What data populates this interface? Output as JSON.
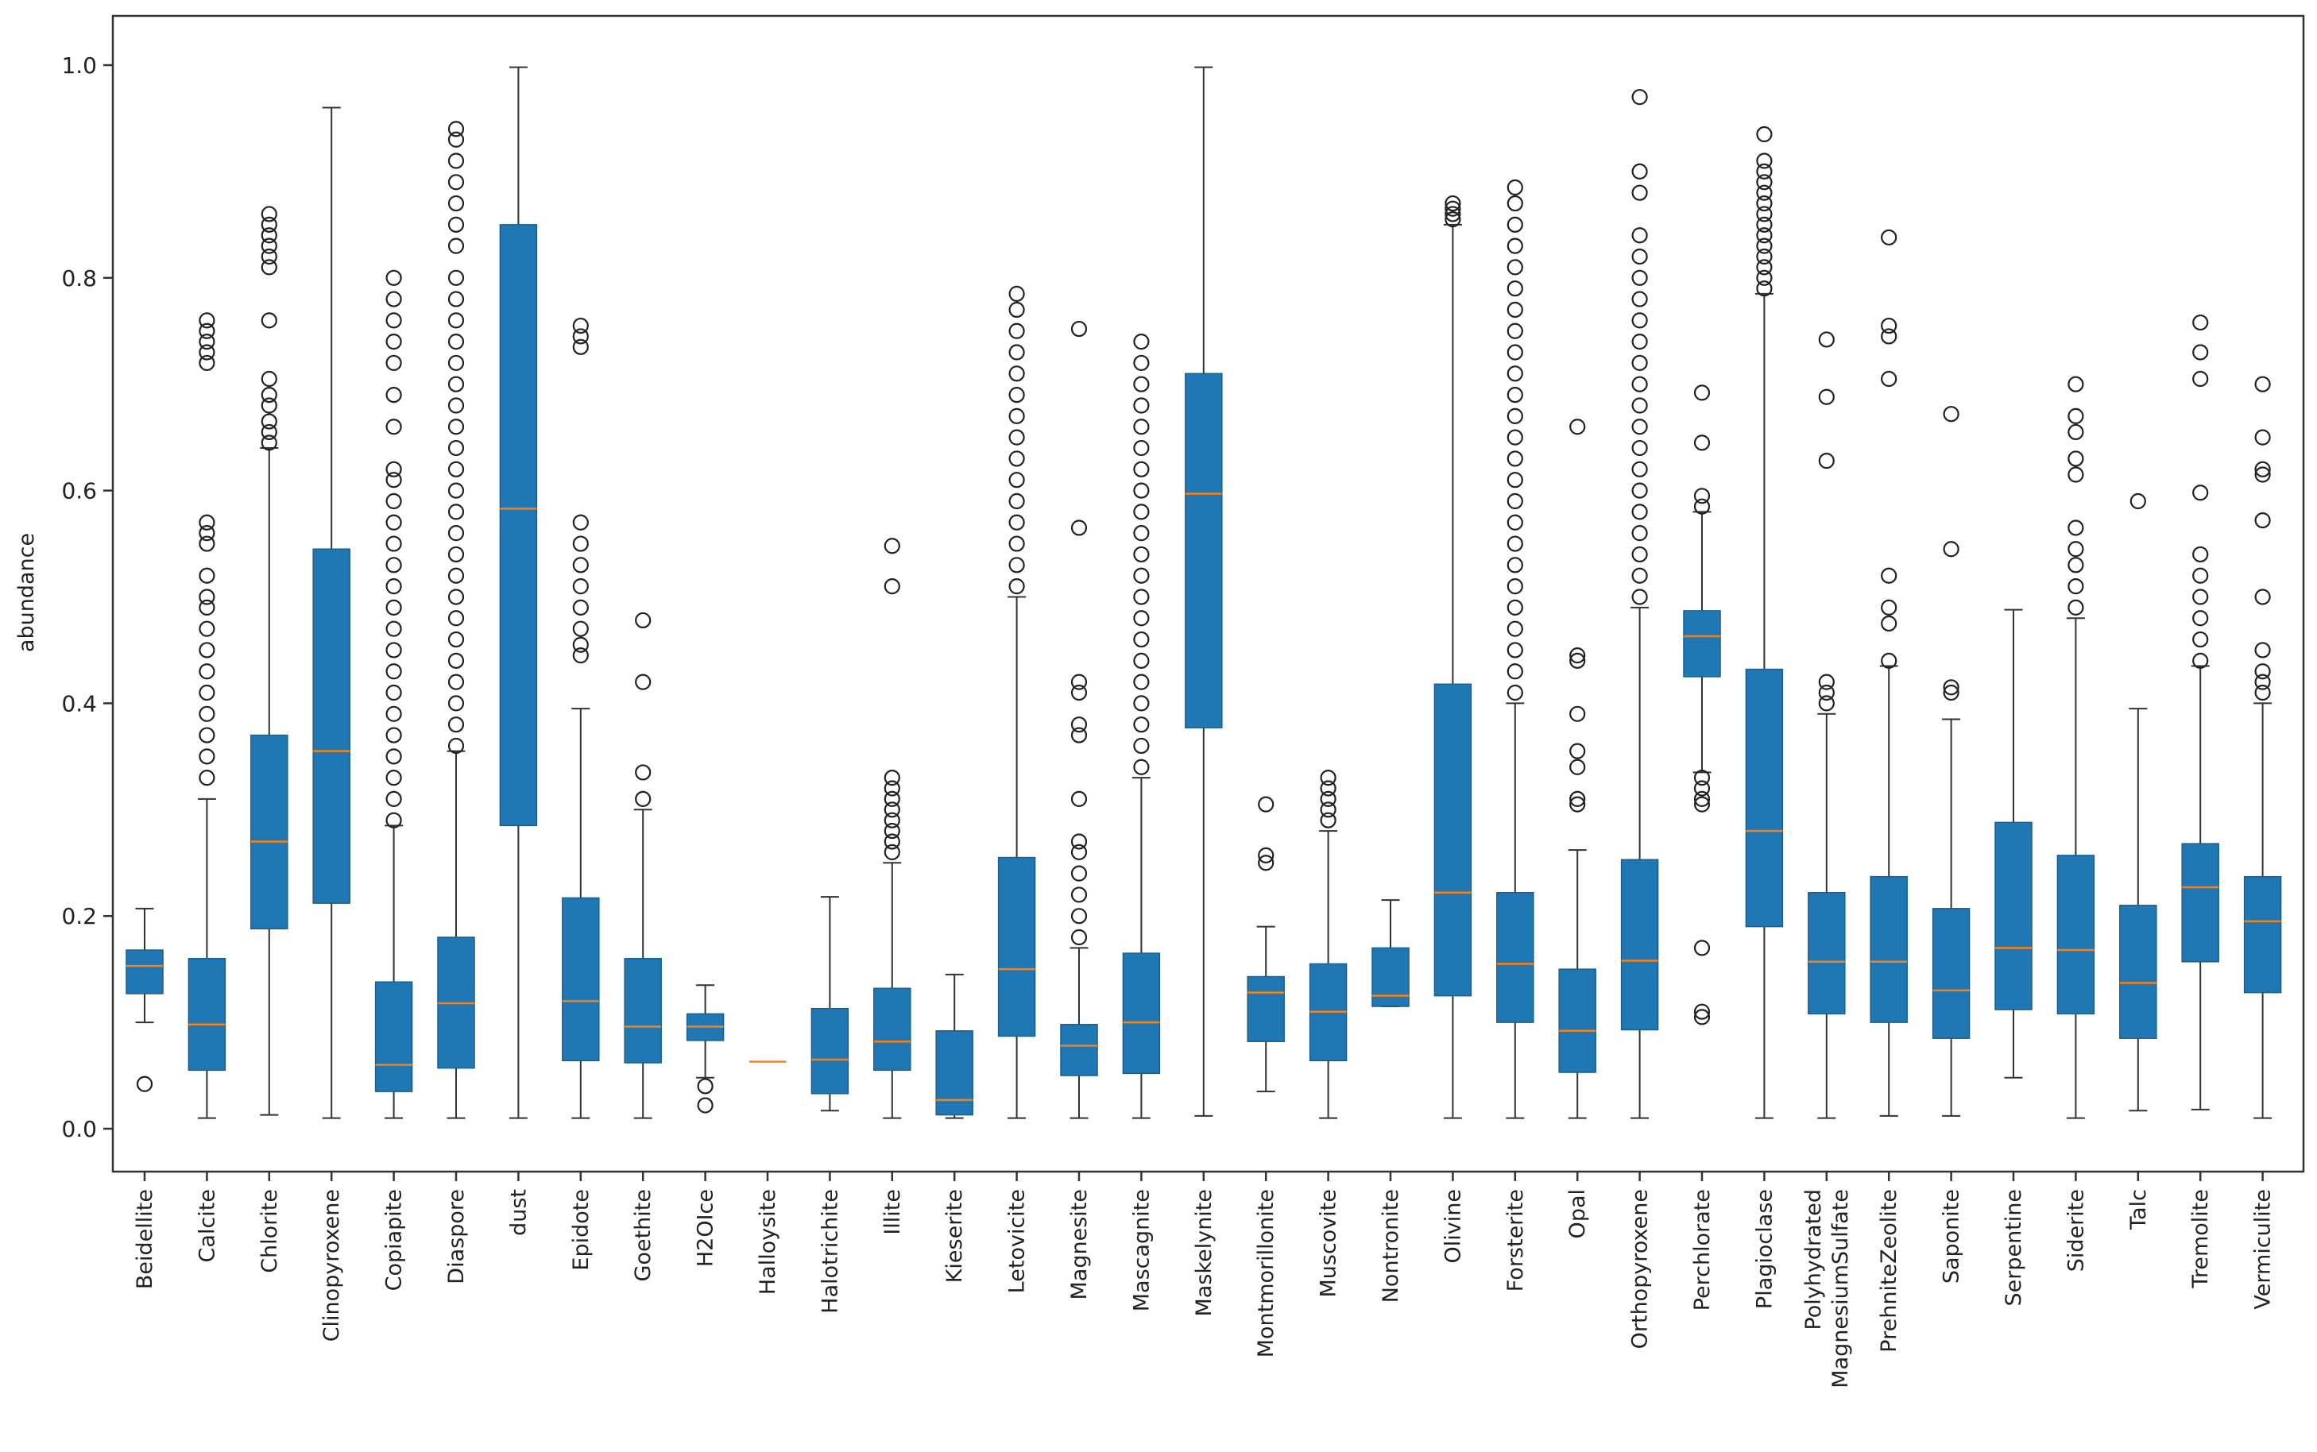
{
  "chart_data": {
    "type": "box",
    "title": "",
    "xlabel": "",
    "ylabel": "abundance",
    "ylim": [
      -0.04,
      1.045
    ],
    "yticks": [
      0.0,
      0.2,
      0.4,
      0.6,
      0.8,
      1.0
    ],
    "ytick_labels": [
      "0.0",
      "0.2",
      "0.4",
      "0.6",
      "0.8",
      "1.0"
    ],
    "grid": false,
    "legend": "none",
    "colors": {
      "box": "#1f77b4",
      "median": "#ff7f0e",
      "line": "#333333",
      "flier": "#222222",
      "frame": "#333333"
    },
    "categories": [
      "Beidellite",
      "Calcite",
      "Chlorite",
      "Clinopyroxene",
      "Copiapite",
      "Diaspore",
      "dust",
      "Epidote",
      "Goethite",
      "H2OIce",
      "Halloysite",
      "Halotrichite",
      "Illite",
      "Kieserite",
      "Letovicite",
      "Magnesite",
      "Mascagnite",
      "Maskelynite",
      "Montmorillonite",
      "Muscovite",
      "Nontronite",
      "Olivine",
      "Forsterite",
      "Opal",
      "Orthopyroxene",
      "Perchlorate",
      "Plagioclase",
      "Polyhydrated MagnesiumSulfate",
      "PrehniteZeolite",
      "Saponite",
      "Serpentine",
      "Siderite",
      "Talc",
      "Tremolite",
      "Vermiculite"
    ],
    "boxes": [
      {
        "q1": 0.127,
        "median": 0.153,
        "q3": 0.168,
        "whislo": 0.1,
        "whishi": 0.207,
        "fliers": [
          0.042
        ]
      },
      {
        "q1": 0.055,
        "median": 0.098,
        "q3": 0.16,
        "whislo": 0.01,
        "whishi": 0.31,
        "fliers": [
          0.33,
          0.35,
          0.37,
          0.39,
          0.41,
          0.43,
          0.45,
          0.47,
          0.49,
          0.5,
          0.52,
          0.55,
          0.56,
          0.57,
          0.72,
          0.73,
          0.74,
          0.75,
          0.76
        ]
      },
      {
        "q1": 0.188,
        "median": 0.27,
        "q3": 0.37,
        "whislo": 0.013,
        "whishi": 0.64,
        "fliers": [
          0.645,
          0.655,
          0.665,
          0.68,
          0.69,
          0.705,
          0.76,
          0.81,
          0.82,
          0.83,
          0.84,
          0.85,
          0.86
        ]
      },
      {
        "q1": 0.212,
        "median": 0.355,
        "q3": 0.545,
        "whislo": 0.01,
        "whishi": 0.96,
        "fliers": []
      },
      {
        "q1": 0.035,
        "median": 0.06,
        "q3": 0.138,
        "whislo": 0.01,
        "whishi": 0.285,
        "fliers": [
          0.29,
          0.31,
          0.33,
          0.35,
          0.37,
          0.39,
          0.41,
          0.43,
          0.45,
          0.47,
          0.49,
          0.51,
          0.53,
          0.55,
          0.57,
          0.59,
          0.61,
          0.62,
          0.66,
          0.69,
          0.72,
          0.74,
          0.76,
          0.78,
          0.8
        ]
      },
      {
        "q1": 0.057,
        "median": 0.118,
        "q3": 0.18,
        "whislo": 0.01,
        "whishi": 0.355,
        "fliers": [
          0.36,
          0.38,
          0.4,
          0.42,
          0.44,
          0.46,
          0.48,
          0.5,
          0.52,
          0.54,
          0.56,
          0.58,
          0.6,
          0.62,
          0.64,
          0.66,
          0.68,
          0.7,
          0.72,
          0.74,
          0.76,
          0.78,
          0.8,
          0.83,
          0.85,
          0.87,
          0.89,
          0.91,
          0.93,
          0.94
        ]
      },
      {
        "q1": 0.285,
        "median": 0.583,
        "q3": 0.85,
        "whislo": 0.01,
        "whishi": 0.998,
        "fliers": []
      },
      {
        "q1": 0.064,
        "median": 0.12,
        "q3": 0.217,
        "whislo": 0.01,
        "whishi": 0.395,
        "fliers": [
          0.445,
          0.455,
          0.47,
          0.49,
          0.51,
          0.53,
          0.55,
          0.57,
          0.735,
          0.745,
          0.755
        ]
      },
      {
        "q1": 0.062,
        "median": 0.096,
        "q3": 0.16,
        "whislo": 0.01,
        "whishi": 0.3,
        "fliers": [
          0.31,
          0.335,
          0.42,
          0.478
        ]
      },
      {
        "q1": 0.083,
        "median": 0.096,
        "q3": 0.108,
        "whislo": 0.048,
        "whishi": 0.135,
        "fliers": [
          0.022,
          0.04
        ]
      },
      {
        "q1": 0.063,
        "median": 0.063,
        "q3": 0.063,
        "whislo": 0.063,
        "whishi": 0.063,
        "fliers": []
      },
      {
        "q1": 0.033,
        "median": 0.065,
        "q3": 0.113,
        "whislo": 0.017,
        "whishi": 0.218,
        "fliers": []
      },
      {
        "q1": 0.055,
        "median": 0.082,
        "q3": 0.132,
        "whislo": 0.01,
        "whishi": 0.25,
        "fliers": [
          0.26,
          0.27,
          0.28,
          0.29,
          0.3,
          0.31,
          0.32,
          0.33,
          0.51,
          0.548
        ]
      },
      {
        "q1": 0.013,
        "median": 0.027,
        "q3": 0.092,
        "whislo": 0.01,
        "whishi": 0.145,
        "fliers": []
      },
      {
        "q1": 0.087,
        "median": 0.15,
        "q3": 0.255,
        "whislo": 0.01,
        "whishi": 0.5,
        "fliers": [
          0.51,
          0.53,
          0.55,
          0.57,
          0.59,
          0.61,
          0.63,
          0.65,
          0.67,
          0.69,
          0.71,
          0.73,
          0.75,
          0.77,
          0.785
        ]
      },
      {
        "q1": 0.05,
        "median": 0.078,
        "q3": 0.098,
        "whislo": 0.01,
        "whishi": 0.17,
        "fliers": [
          0.18,
          0.2,
          0.22,
          0.24,
          0.26,
          0.27,
          0.31,
          0.37,
          0.38,
          0.41,
          0.42,
          0.565,
          0.752
        ]
      },
      {
        "q1": 0.052,
        "median": 0.1,
        "q3": 0.165,
        "whislo": 0.01,
        "whishi": 0.33,
        "fliers": [
          0.34,
          0.36,
          0.38,
          0.4,
          0.42,
          0.44,
          0.46,
          0.48,
          0.5,
          0.52,
          0.54,
          0.56,
          0.58,
          0.6,
          0.62,
          0.64,
          0.66,
          0.68,
          0.7,
          0.72,
          0.74
        ]
      },
      {
        "q1": 0.377,
        "median": 0.597,
        "q3": 0.71,
        "whislo": 0.012,
        "whishi": 0.998,
        "fliers": []
      },
      {
        "q1": 0.082,
        "median": 0.128,
        "q3": 0.143,
        "whislo": 0.035,
        "whishi": 0.19,
        "fliers": [
          0.25,
          0.257,
          0.305
        ]
      },
      {
        "q1": 0.064,
        "median": 0.11,
        "q3": 0.155,
        "whislo": 0.01,
        "whishi": 0.28,
        "fliers": [
          0.29,
          0.3,
          0.31,
          0.32,
          0.33
        ]
      },
      {
        "q1": 0.115,
        "median": 0.125,
        "q3": 0.17,
        "whislo": 0.115,
        "whishi": 0.215,
        "fliers": []
      },
      {
        "q1": 0.125,
        "median": 0.222,
        "q3": 0.418,
        "whislo": 0.01,
        "whishi": 0.85,
        "fliers": [
          0.855,
          0.86,
          0.865,
          0.87
        ]
      },
      {
        "q1": 0.1,
        "median": 0.155,
        "q3": 0.222,
        "whislo": 0.01,
        "whishi": 0.4,
        "fliers": [
          0.41,
          0.43,
          0.45,
          0.47,
          0.49,
          0.51,
          0.53,
          0.55,
          0.57,
          0.59,
          0.61,
          0.63,
          0.65,
          0.67,
          0.69,
          0.71,
          0.73,
          0.75,
          0.77,
          0.79,
          0.81,
          0.83,
          0.85,
          0.87,
          0.885
        ]
      },
      {
        "q1": 0.053,
        "median": 0.092,
        "q3": 0.15,
        "whislo": 0.01,
        "whishi": 0.262,
        "fliers": [
          0.305,
          0.31,
          0.34,
          0.355,
          0.39,
          0.44,
          0.445,
          0.66
        ]
      },
      {
        "q1": 0.093,
        "median": 0.158,
        "q3": 0.253,
        "whislo": 0.01,
        "whishi": 0.49,
        "fliers": [
          0.5,
          0.52,
          0.54,
          0.56,
          0.58,
          0.6,
          0.62,
          0.64,
          0.66,
          0.68,
          0.7,
          0.72,
          0.74,
          0.76,
          0.78,
          0.8,
          0.82,
          0.84,
          0.88,
          0.9,
          0.97
        ]
      },
      {
        "q1": 0.425,
        "median": 0.463,
        "q3": 0.487,
        "whislo": 0.335,
        "whishi": 0.58,
        "fliers": [
          0.105,
          0.11,
          0.17,
          0.305,
          0.31,
          0.32,
          0.33,
          0.585,
          0.595,
          0.645,
          0.692
        ]
      },
      {
        "q1": 0.19,
        "median": 0.28,
        "q3": 0.432,
        "whislo": 0.01,
        "whishi": 0.785,
        "fliers": [
          0.79,
          0.8,
          0.81,
          0.82,
          0.83,
          0.84,
          0.85,
          0.86,
          0.87,
          0.88,
          0.89,
          0.9,
          0.91,
          0.935
        ]
      },
      {
        "q1": 0.108,
        "median": 0.157,
        "q3": 0.222,
        "whislo": 0.01,
        "whishi": 0.39,
        "fliers": [
          0.4,
          0.41,
          0.42,
          0.628,
          0.688,
          0.742
        ]
      },
      {
        "q1": 0.1,
        "median": 0.157,
        "q3": 0.237,
        "whislo": 0.012,
        "whishi": 0.435,
        "fliers": [
          0.44,
          0.475,
          0.49,
          0.52,
          0.705,
          0.745,
          0.755,
          0.838
        ]
      },
      {
        "q1": 0.085,
        "median": 0.13,
        "q3": 0.207,
        "whislo": 0.012,
        "whishi": 0.385,
        "fliers": [
          0.41,
          0.415,
          0.545,
          0.672
        ]
      },
      {
        "q1": 0.112,
        "median": 0.17,
        "q3": 0.288,
        "whislo": 0.048,
        "whishi": 0.488,
        "fliers": []
      },
      {
        "q1": 0.108,
        "median": 0.168,
        "q3": 0.257,
        "whislo": 0.01,
        "whishi": 0.48,
        "fliers": [
          0.49,
          0.51,
          0.53,
          0.545,
          0.565,
          0.615,
          0.63,
          0.655,
          0.67,
          0.7
        ]
      },
      {
        "q1": 0.085,
        "median": 0.137,
        "q3": 0.21,
        "whislo": 0.017,
        "whishi": 0.395,
        "fliers": [
          0.59
        ]
      },
      {
        "q1": 0.157,
        "median": 0.227,
        "q3": 0.268,
        "whislo": 0.018,
        "whishi": 0.435,
        "fliers": [
          0.44,
          0.46,
          0.48,
          0.5,
          0.52,
          0.54,
          0.598,
          0.705,
          0.73,
          0.758
        ]
      },
      {
        "q1": 0.128,
        "median": 0.195,
        "q3": 0.237,
        "whislo": 0.01,
        "whishi": 0.4,
        "fliers": [
          0.41,
          0.42,
          0.43,
          0.45,
          0.5,
          0.572,
          0.615,
          0.62,
          0.65,
          0.7
        ]
      }
    ]
  }
}
